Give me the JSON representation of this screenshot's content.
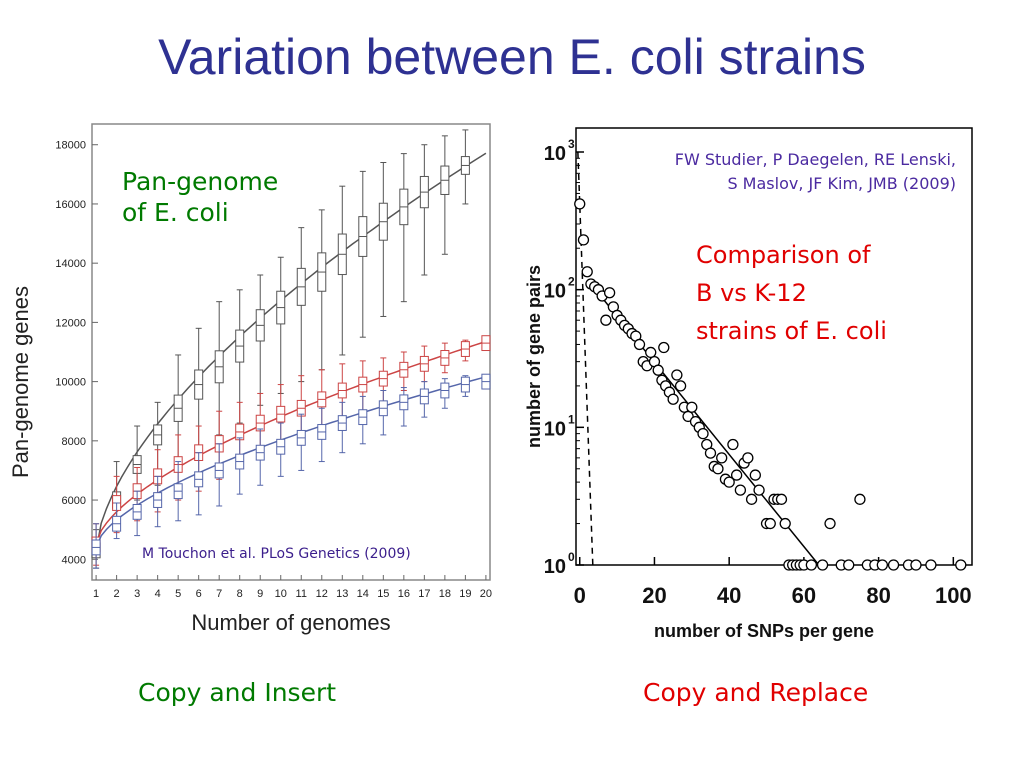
{
  "slide_title": "Variation between E. coli strains",
  "annotations": {
    "pan_genome_line1": "Pan-genome",
    "pan_genome_line2": "of E. coli",
    "left_citation": "M Touchon et al. PLoS Genetics (2009)",
    "right_citation_line1": "FW Studier, P Daegelen, RE Lenski,",
    "right_citation_line2": "S Maslov, JF Kim, JMB (2009)",
    "comparison_line1": "Comparison of",
    "comparison_line2": "B vs K-12",
    "comparison_line3": "strains of E. coli",
    "caption_left": "Copy and Insert",
    "caption_right": "Copy and Replace"
  },
  "chart_data": [
    {
      "type": "box",
      "xlabel": "Number of genomes",
      "ylabel": "Pan-genome genes",
      "x": [
        1,
        2,
        3,
        4,
        5,
        6,
        7,
        8,
        9,
        10,
        11,
        12,
        13,
        14,
        15,
        16,
        17,
        18,
        19,
        20
      ],
      "xlim": [
        0.8,
        20.2
      ],
      "ylim": [
        3300,
        18700
      ],
      "yticks": [
        4000,
        6000,
        8000,
        10000,
        12000,
        14000,
        16000,
        18000
      ],
      "series": [
        {
          "color": "#555555",
          "median": [
            4300,
            6000,
            7200,
            8200,
            9100,
            9900,
            10500,
            11200,
            11900,
            12500,
            13200,
            13700,
            14300,
            14900,
            15400,
            15900,
            16400,
            16800,
            17300,
            null
          ],
          "low": [
            3700,
            5000,
            6000,
            6500,
            7200,
            7700,
            8200,
            8600,
            9200,
            9600,
            10000,
            10400,
            10900,
            11500,
            12200,
            12700,
            13600,
            14300,
            16000,
            null
          ],
          "high": [
            5000,
            7300,
            8500,
            9300,
            10900,
            11800,
            12700,
            13100,
            13600,
            14200,
            15200,
            15800,
            16600,
            17100,
            17400,
            17700,
            18000,
            18300,
            18500,
            null
          ],
          "fit_end": 17800
        },
        {
          "color": "#cc4444",
          "median": [
            4500,
            5900,
            6300,
            6800,
            7200,
            7600,
            7900,
            8300,
            8600,
            8900,
            9100,
            9400,
            9700,
            9900,
            10100,
            10400,
            10600,
            10800,
            11100,
            11300
          ],
          "low": [
            3800,
            4900,
            5300,
            5600,
            6000,
            6300,
            6700,
            7100,
            7400,
            7700,
            8000,
            8300,
            8700,
            9000,
            9300,
            9700,
            10000,
            10300,
            10700,
            null
          ],
          "high": [
            5200,
            6800,
            7100,
            7700,
            8200,
            8500,
            9000,
            9300,
            9600,
            9900,
            10200,
            10400,
            10600,
            10700,
            10800,
            11000,
            11200,
            11300,
            11400,
            null
          ],
          "fit_end": 11400
        },
        {
          "color": "#5566aa",
          "median": [
            4400,
            5200,
            5600,
            6000,
            6300,
            6700,
            7000,
            7300,
            7600,
            7800,
            8100,
            8300,
            8600,
            8800,
            9100,
            9300,
            9500,
            9700,
            9900,
            10000
          ],
          "low": [
            3700,
            4700,
            4800,
            5100,
            5300,
            5500,
            5800,
            6200,
            6500,
            6800,
            7000,
            7300,
            7600,
            7900,
            8200,
            8500,
            8800,
            9100,
            9500,
            null
          ],
          "high": [
            5200,
            5900,
            6300,
            6800,
            7300,
            7600,
            7900,
            8100,
            8400,
            8600,
            8900,
            9100,
            9300,
            9500,
            9700,
            9800,
            10000,
            10100,
            10200,
            null
          ],
          "fit_end": 10200
        }
      ]
    },
    {
      "type": "scatter",
      "xlabel": "number of SNPs per gene",
      "ylabel": "number of gene pairs",
      "xticks": [
        0,
        20,
        40,
        60,
        80,
        100
      ],
      "xlim": [
        -1,
        105
      ],
      "ylim_log10": [
        0,
        3
      ],
      "ytick_labels": [
        "10",
        "10",
        "10",
        "10"
      ],
      "ytick_exponents": [
        "0",
        "1",
        "2",
        "3"
      ],
      "points": [
        [
          0,
          420
        ],
        [
          1,
          230
        ],
        [
          2,
          135
        ],
        [
          3,
          110
        ],
        [
          4,
          105
        ],
        [
          5,
          100
        ],
        [
          6,
          90
        ],
        [
          7,
          60
        ],
        [
          8,
          95
        ],
        [
          9,
          75
        ],
        [
          10,
          65
        ],
        [
          11,
          60
        ],
        [
          12,
          55
        ],
        [
          13,
          52
        ],
        [
          14,
          48
        ],
        [
          15,
          46
        ],
        [
          16,
          40
        ],
        [
          17,
          30
        ],
        [
          18,
          28
        ],
        [
          19,
          35
        ],
        [
          20,
          30
        ],
        [
          21,
          26
        ],
        [
          22,
          22
        ],
        [
          22.5,
          38
        ],
        [
          23,
          20
        ],
        [
          24,
          18
        ],
        [
          25,
          16
        ],
        [
          26,
          24
        ],
        [
          27,
          20
        ],
        [
          28,
          14
        ],
        [
          29,
          12
        ],
        [
          30,
          14
        ],
        [
          31,
          11
        ],
        [
          32,
          10
        ],
        [
          33,
          9
        ],
        [
          34,
          7.5
        ],
        [
          35,
          6.5
        ],
        [
          36,
          5.2
        ],
        [
          37,
          5
        ],
        [
          38,
          6
        ],
        [
          39,
          4.2
        ],
        [
          40,
          4
        ],
        [
          41,
          7.5
        ],
        [
          42,
          4.5
        ],
        [
          43,
          3.5
        ],
        [
          44,
          5.5
        ],
        [
          45,
          6
        ],
        [
          46,
          3
        ],
        [
          47,
          4.5
        ],
        [
          48,
          3.5
        ],
        [
          50,
          2
        ],
        [
          51,
          2
        ],
        [
          52,
          3
        ],
        [
          53,
          3
        ],
        [
          54,
          3
        ],
        [
          55,
          2
        ],
        [
          56,
          1
        ],
        [
          57,
          1
        ],
        [
          58,
          1
        ],
        [
          59,
          1
        ],
        [
          60,
          1
        ],
        [
          62,
          1
        ],
        [
          65,
          1
        ],
        [
          67,
          2
        ],
        [
          70,
          1
        ],
        [
          72,
          1
        ],
        [
          75,
          3
        ],
        [
          77,
          1
        ],
        [
          79,
          1
        ],
        [
          81,
          1
        ],
        [
          84,
          1
        ],
        [
          88,
          1
        ],
        [
          90,
          1
        ],
        [
          94,
          1
        ],
        [
          102,
          1
        ]
      ],
      "fit_solid": [
        [
          3,
          110
        ],
        [
          64,
          1
        ]
      ],
      "fit_dashed": [
        [
          -0.5,
          1000
        ],
        [
          3.5,
          1
        ]
      ]
    }
  ]
}
